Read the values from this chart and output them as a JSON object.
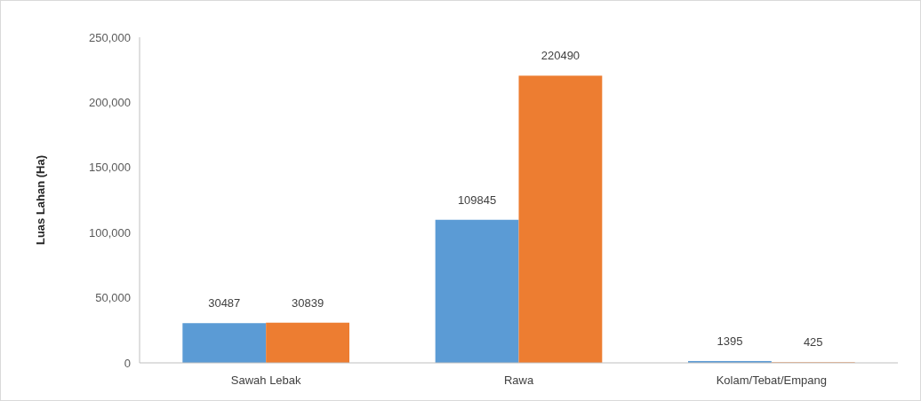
{
  "chart_data": {
    "type": "bar",
    "ylabel": "Luas Lahan (Ha)",
    "categories": [
      "Sawah Lebak",
      "Rawa",
      "Kolam/Tebat/Empang"
    ],
    "series": [
      {
        "color": "#5b9bd5",
        "values": [
          30487,
          109845,
          1395
        ]
      },
      {
        "color": "#ed7d31",
        "values": [
          30839,
          220490,
          425
        ]
      }
    ],
    "ylim": [
      0,
      250000
    ],
    "yticks": [
      {
        "value": 0,
        "label": "0"
      },
      {
        "value": 50000,
        "label": "50,000"
      },
      {
        "value": 100000,
        "label": "100,000"
      },
      {
        "value": 150000,
        "label": "150,000"
      },
      {
        "value": 200000,
        "label": "200,000"
      },
      {
        "value": 250000,
        "label": "250,000"
      }
    ],
    "data_labels": true,
    "grid": false
  }
}
